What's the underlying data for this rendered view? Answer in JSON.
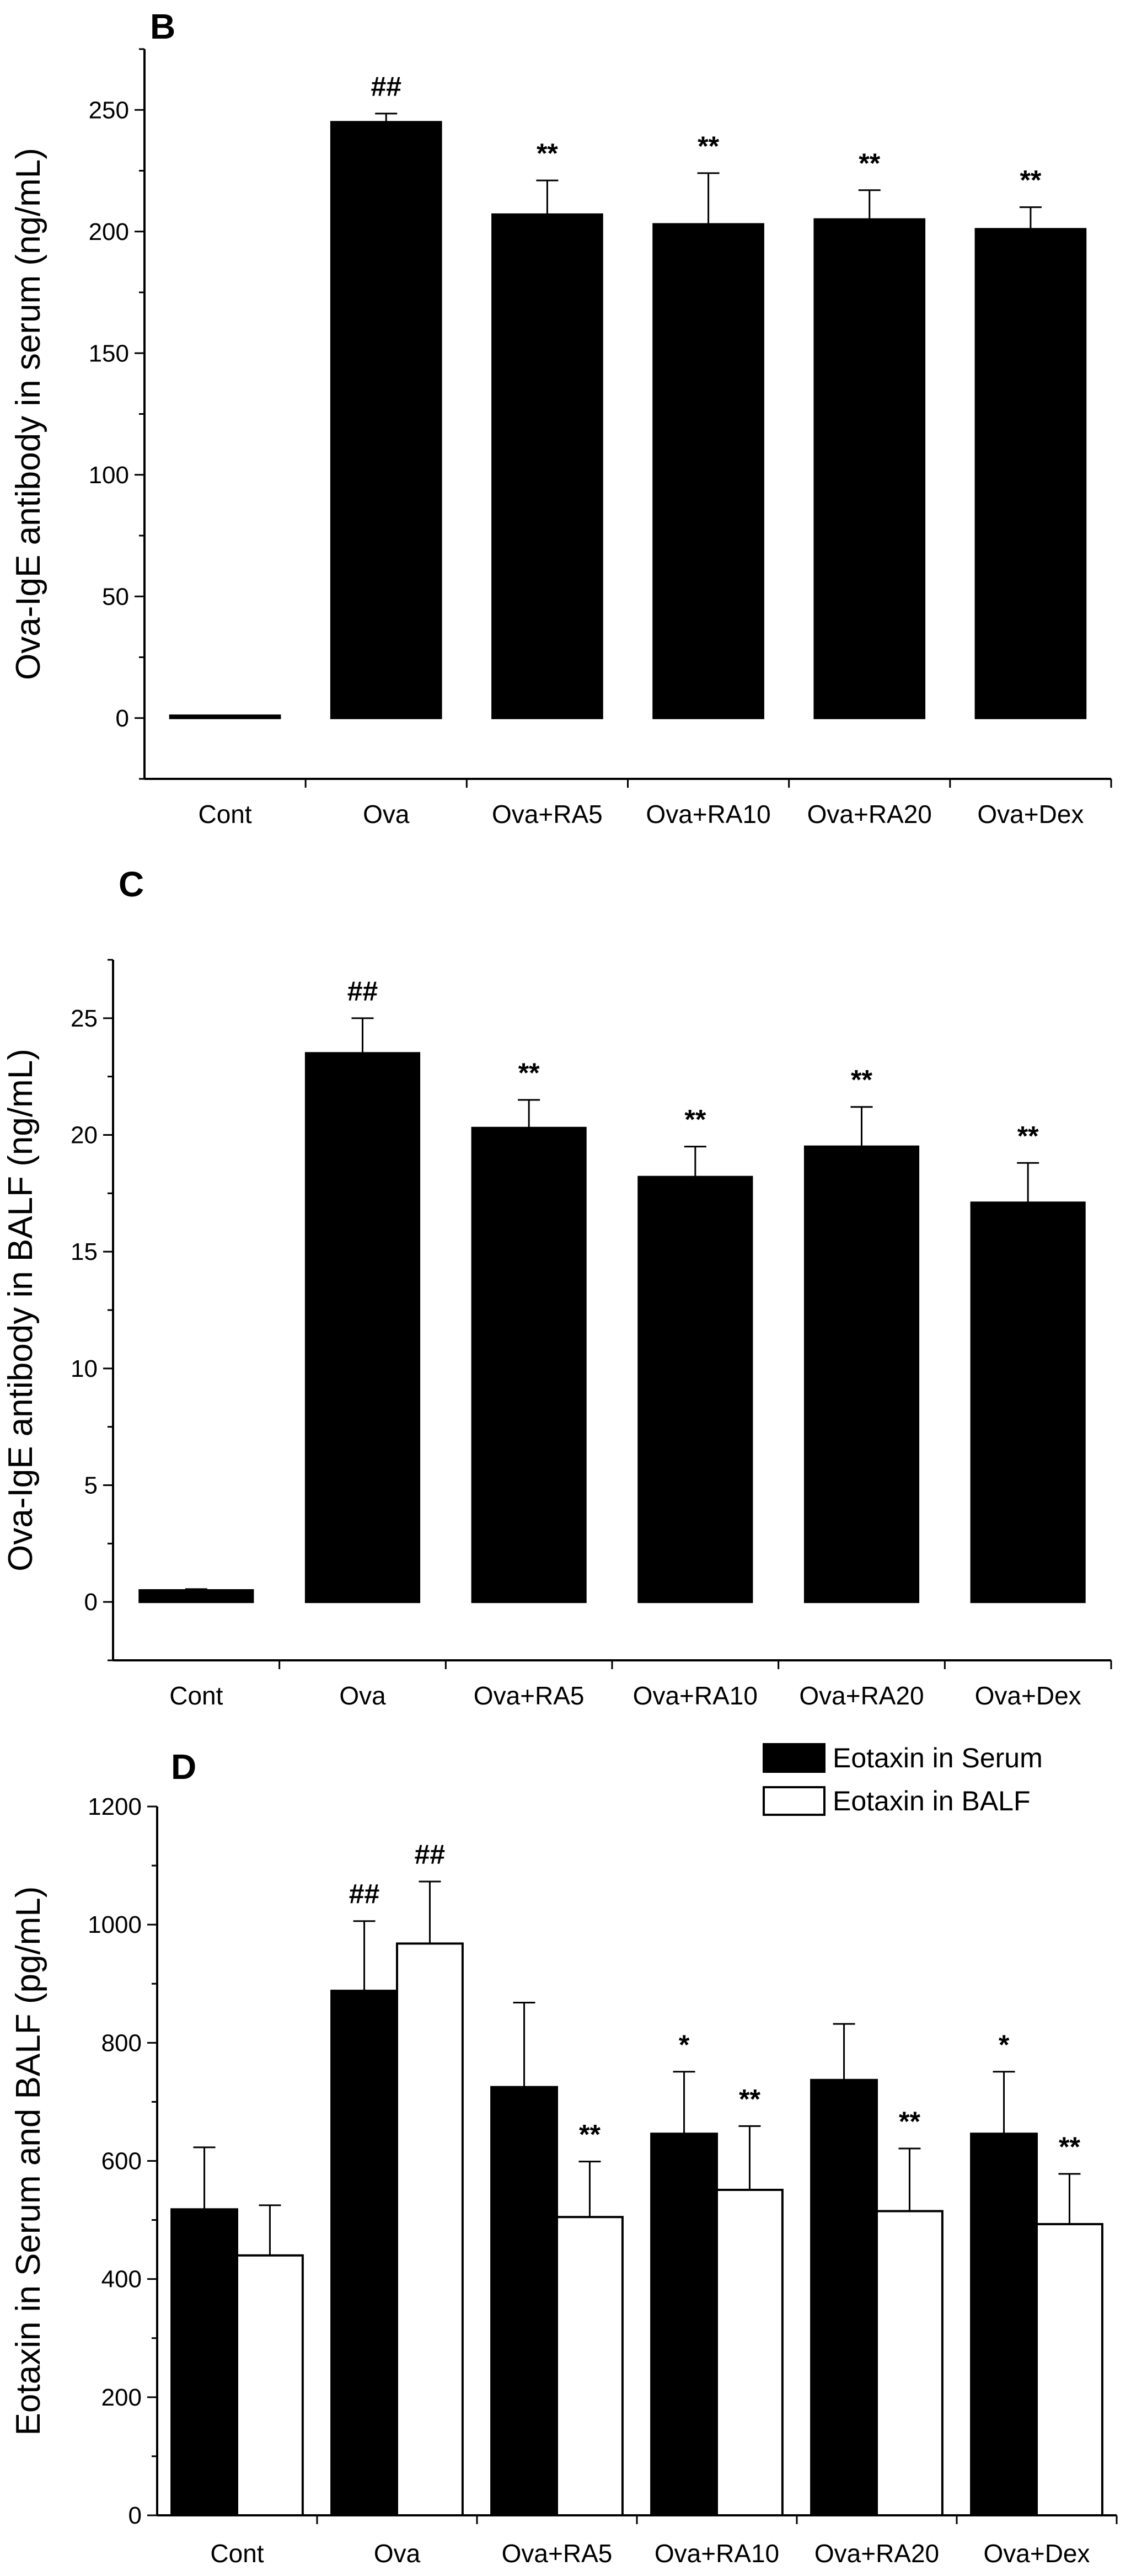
{
  "chart_data": [
    {
      "type": "bar",
      "panel": "B",
      "title": "",
      "xlabel": "",
      "ylabel": "Ova-IgE antibody in serum  (ng/mL)",
      "ylim": [
        -25,
        275
      ],
      "yticks": [
        0,
        50,
        100,
        150,
        200,
        250
      ],
      "categories": [
        "Cont",
        "Ova",
        "Ova+RA5",
        "Ova+RA10",
        "Ova+RA20",
        "Ova+Dex"
      ],
      "series": [
        {
          "name": "Ova-IgE in serum",
          "fill": "#000000",
          "values": [
            1,
            245,
            207,
            203,
            205,
            201
          ],
          "errors": [
            0,
            3.5,
            14,
            21,
            12,
            9
          ],
          "annotations": [
            "",
            "##",
            "**",
            "**",
            "**",
            "**"
          ]
        }
      ]
    },
    {
      "type": "bar",
      "panel": "C",
      "title": "",
      "xlabel": "",
      "ylabel": "Ova-IgE antibody in BALF (ng/mL)",
      "ylim": [
        -2.5,
        27.5
      ],
      "yticks": [
        0,
        5,
        10,
        15,
        20,
        25
      ],
      "categories": [
        "Cont",
        "Ova",
        "Ova+RA5",
        "Ova+RA10",
        "Ova+RA20",
        "Ova+Dex"
      ],
      "series": [
        {
          "name": "Ova-IgE in BALF",
          "fill": "#000000",
          "values": [
            0.5,
            23.5,
            20.3,
            18.2,
            19.5,
            17.1
          ],
          "errors": [
            0.05,
            1.5,
            1.2,
            1.3,
            1.7,
            1.7
          ],
          "annotations": [
            "",
            "##",
            "**",
            "**",
            "**",
            "**"
          ]
        }
      ]
    },
    {
      "type": "bar",
      "panel": "D",
      "title": "",
      "xlabel": "",
      "ylabel": "Eotaxin in Serum and BALF (pg/mL)",
      "ylim": [
        0,
        1200
      ],
      "yticks": [
        0,
        200,
        400,
        600,
        800,
        1000,
        1200
      ],
      "legend_position": "top-right",
      "categories": [
        "Cont",
        "Ova",
        "Ova+RA5",
        "Ova+RA10",
        "Ova+RA20",
        "Ova+Dex"
      ],
      "series": [
        {
          "name": "Eotaxin  in Serum",
          "fill": "#000000",
          "values": [
            518,
            888,
            725,
            646,
            737,
            646
          ],
          "errors": [
            105,
            118,
            143,
            105,
            95,
            105
          ],
          "annotations": [
            "",
            "##",
            "",
            "*",
            "",
            "*"
          ]
        },
        {
          "name": "Eotaxin in BALF",
          "fill": "#ffffff",
          "values": [
            440,
            968,
            505,
            551,
            515,
            493
          ],
          "errors": [
            85,
            105,
            94,
            108,
            106,
            85
          ],
          "annotations": [
            "",
            "##",
            "**",
            "**",
            "**",
            "**"
          ]
        }
      ]
    }
  ]
}
